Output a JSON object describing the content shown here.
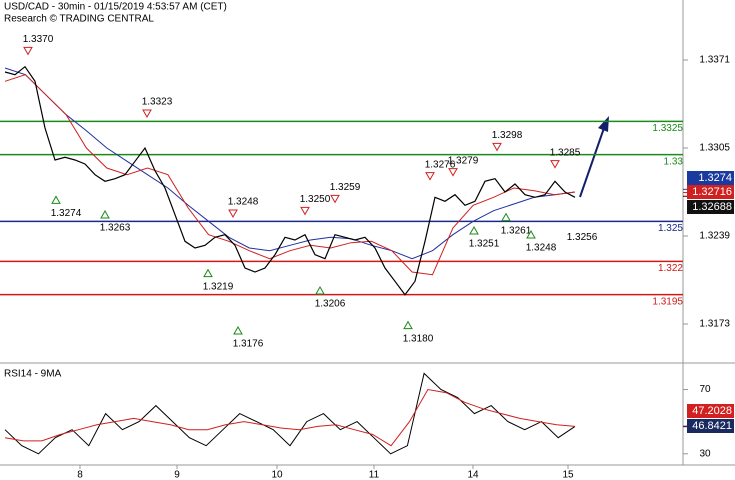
{
  "chart_data": {
    "type": "line",
    "title": "USD/CAD - 30min - 01/15/2019 4:53:57 AM (CET)",
    "subtitle": "Research © TRADING CENTRAL",
    "x_labels": [
      "8",
      "9",
      "10",
      "11",
      "14",
      "15"
    ],
    "ylim": [
      1.31445,
      1.3416
    ],
    "yticks": [
      1.3371,
      1.3305,
      1.3239,
      1.3173
    ],
    "series": [
      {
        "name": "Price",
        "color": "#000000",
        "values": [
          1.3362,
          1.336,
          1.3366,
          1.3355,
          1.332,
          1.3296,
          1.3298,
          1.3296,
          1.3293,
          1.3285,
          1.328,
          1.3282,
          1.3285,
          1.3295,
          1.3305,
          1.3288,
          1.3275,
          1.3255,
          1.3235,
          1.323,
          1.3232,
          1.3238,
          1.324,
          1.3232,
          1.3215,
          1.3212,
          1.3215,
          1.3225,
          1.3238,
          1.3236,
          1.324,
          1.3225,
          1.3222,
          1.324,
          1.3238,
          1.3236,
          1.3238,
          1.323,
          1.3215,
          1.3205,
          1.3195,
          1.3205,
          1.3235,
          1.3268,
          1.3265,
          1.327,
          1.3262,
          1.3265,
          1.328,
          1.3282,
          1.3272,
          1.3278,
          1.327,
          1.3268,
          1.327,
          1.328,
          1.3272,
          1.3268
        ]
      },
      {
        "name": "Fast MA",
        "color": "#d02020",
        "values": [
          1.3355,
          1.336,
          1.3345,
          1.333,
          1.3305,
          1.329,
          1.3285,
          1.329,
          1.3285,
          1.326,
          1.324,
          1.3235,
          1.3228,
          1.3222,
          1.3228,
          1.3232,
          1.323,
          1.3234,
          1.3235,
          1.3228,
          1.3212,
          1.321,
          1.3245,
          1.3262,
          1.3268,
          1.3275,
          1.3273,
          1.327,
          1.3272
        ]
      },
      {
        "name": "Slow MA",
        "color": "#2030a0",
        "values": [
          1.3365,
          1.336,
          1.3345,
          1.333,
          1.3318,
          1.3305,
          1.3295,
          1.3285,
          1.3275,
          1.3262,
          1.325,
          1.3238,
          1.323,
          1.3228,
          1.3232,
          1.3236,
          1.3238,
          1.3237,
          1.3232,
          1.3228,
          1.3222,
          1.3228,
          1.324,
          1.325,
          1.3258,
          1.3263,
          1.3268,
          1.327,
          1.3272
        ]
      }
    ],
    "levels": [
      {
        "value": 1.3325,
        "label": "1.3325",
        "color": "#1a8a1a"
      },
      {
        "value": 1.33,
        "label": "1.33",
        "color": "#1a8a1a"
      },
      {
        "value": 1.325,
        "label": "1.325",
        "color": "#1a2a8a"
      },
      {
        "value": 1.322,
        "label": "1.322",
        "color": "#d01818"
      },
      {
        "value": 1.3195,
        "label": "1.3195",
        "color": "#d01818"
      }
    ],
    "price_boxes": [
      {
        "value": 1.3274,
        "label": "1.3274",
        "color": "#1a3aa0"
      },
      {
        "value": 1.32716,
        "label": "1.32716",
        "color": "#d02020"
      },
      {
        "value": 1.32688,
        "label": "1.32688",
        "color": "#111111"
      }
    ],
    "annotations": [
      {
        "label": "1.3370",
        "value": 1.337,
        "dir": "high"
      },
      {
        "label": "1.3274",
        "value": 1.3274,
        "dir": "low"
      },
      {
        "label": "1.3263",
        "value": 1.3263,
        "dir": "low"
      },
      {
        "label": "1.3323",
        "value": 1.3323,
        "dir": "high"
      },
      {
        "label": "1.3219",
        "value": 1.3219,
        "dir": "low"
      },
      {
        "label": "1.3248",
        "value": 1.3248,
        "dir": "high"
      },
      {
        "label": "1.3176",
        "value": 1.3176,
        "dir": "low"
      },
      {
        "label": "1.3250",
        "value": 1.325,
        "dir": "high"
      },
      {
        "label": "1.3206",
        "value": 1.3206,
        "dir": "low"
      },
      {
        "label": "1.3259",
        "value": 1.3259,
        "dir": "high"
      },
      {
        "label": "1.3180",
        "value": 1.318,
        "dir": "low"
      },
      {
        "label": "1.3276",
        "value": 1.3276,
        "dir": "high"
      },
      {
        "label": "1.3279",
        "value": 1.3279,
        "dir": "high"
      },
      {
        "label": "1.3251",
        "value": 1.3251,
        "dir": "low"
      },
      {
        "label": "1.3298",
        "value": 1.3298,
        "dir": "high"
      },
      {
        "label": "1.3261",
        "value": 1.3261,
        "dir": "low"
      },
      {
        "label": "1.3248",
        "value": 1.3248,
        "dir": "low"
      },
      {
        "label": "1.3285",
        "value": 1.3285,
        "dir": "high"
      },
      {
        "label": "1.3256",
        "value": 1.3256,
        "dir": "low",
        "marker": false
      }
    ],
    "rsi": {
      "title": "RSI14 - 9MA",
      "ylim": [
        23,
        84
      ],
      "yticks": [
        70,
        30
      ],
      "series": [
        {
          "name": "RSI14",
          "color": "#000000",
          "values": [
            45,
            35,
            30,
            40,
            45,
            35,
            55,
            45,
            50,
            60,
            50,
            40,
            35,
            45,
            55,
            50,
            45,
            35,
            50,
            55,
            45,
            50,
            40,
            30,
            35,
            80,
            70,
            65,
            55,
            60,
            50,
            45,
            50,
            40,
            47
          ]
        },
        {
          "name": "9MA",
          "color": "#d02020",
          "values": [
            40,
            38,
            38,
            42,
            45,
            48,
            50,
            52,
            50,
            48,
            45,
            45,
            48,
            50,
            48,
            46,
            45,
            47,
            48,
            45,
            42,
            35,
            50,
            70,
            68,
            62,
            58,
            55,
            52,
            50,
            48,
            47
          ]
        }
      ],
      "boxes": [
        {
          "value": 47.2028,
          "label": "47.2028",
          "color": "#d02020"
        },
        {
          "value": 46.8421,
          "label": "46.8421",
          "color": "#1a2a60"
        }
      ]
    }
  }
}
